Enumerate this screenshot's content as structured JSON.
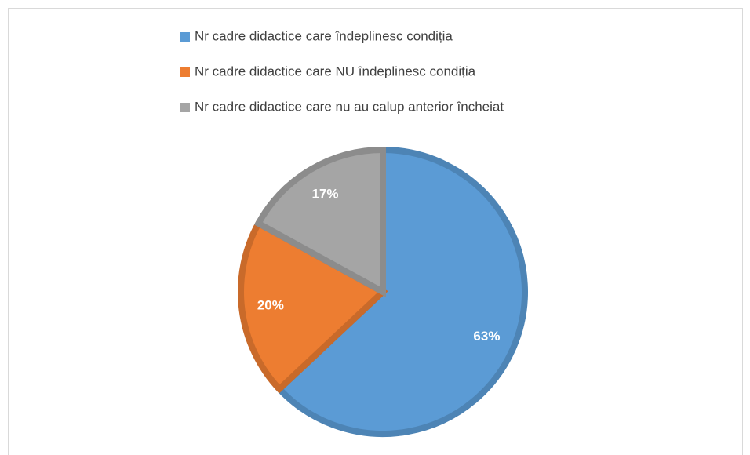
{
  "chart_data": {
    "type": "pie",
    "categories": [
      "Nr cadre didactice care îndeplinesc condiția",
      "Nr cadre didactice care NU îndeplinesc condiția",
      "Nr cadre didactice care nu au calup anterior încheiat"
    ],
    "values": [
      63,
      20,
      17
    ],
    "value_labels": [
      "63%",
      "20%",
      "17%"
    ],
    "colors": [
      "#5b9bd5",
      "#ed7d31",
      "#a5a5a5"
    ],
    "legend": "top"
  }
}
